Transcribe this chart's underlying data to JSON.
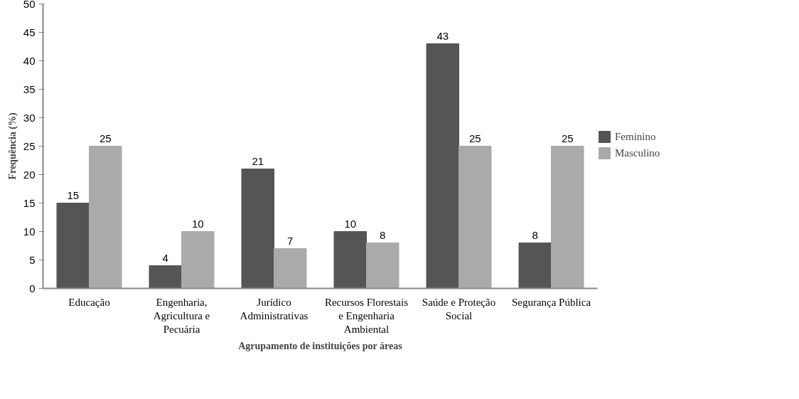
{
  "chart_data": {
    "type": "bar",
    "xlabel": "Agrupamento de instituições por áreas",
    "ylabel": "Frequência (%)",
    "categories": [
      "Educação",
      "Engenharia, Agricultura e Pecuária",
      "Jurídico Administrativas",
      "Recursos Florestais e Engenharia Ambiental",
      "Saúde e Proteção Social",
      "Segurança Pública"
    ],
    "series": [
      {
        "name": "Feminino",
        "color": "#555555",
        "values": [
          15,
          4,
          21,
          10,
          43,
          8
        ]
      },
      {
        "name": "Masculino",
        "color": "#aaaaaa",
        "values": [
          25,
          10,
          7,
          8,
          25,
          25
        ]
      }
    ],
    "ylim": [
      0,
      50
    ],
    "yticks": [
      0,
      5,
      10,
      15,
      20,
      25,
      30,
      35,
      40,
      45,
      50
    ],
    "data_labels": true,
    "grid": false,
    "legend": "right"
  }
}
